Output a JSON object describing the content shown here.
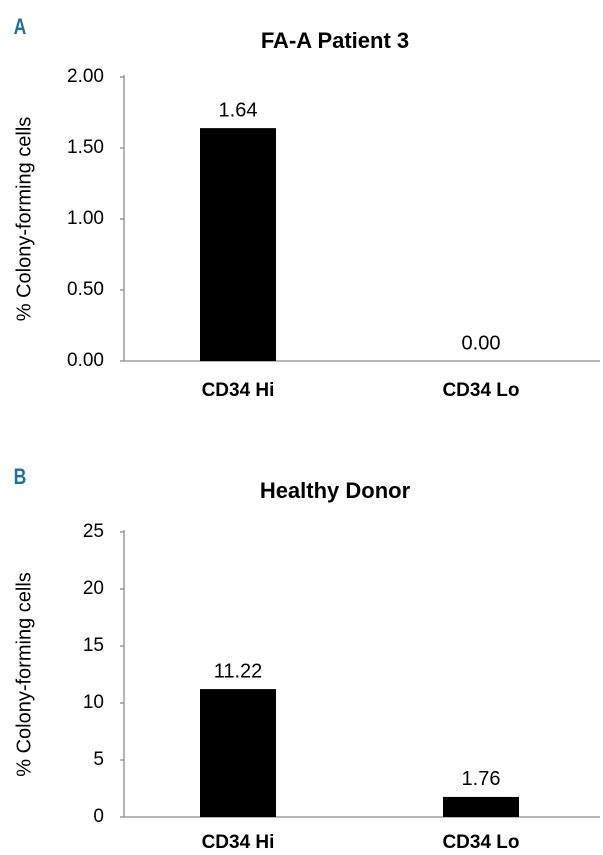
{
  "chart_data": [
    {
      "type": "bar",
      "label": "A",
      "title": "FA-A Patient 3",
      "y_label": "% Colony-forming cells",
      "categories": [
        "CD34 Hi",
        "CD34 Lo"
      ],
      "values": [
        1.64,
        0
      ],
      "value_labels": [
        "1.64",
        "0.00"
      ],
      "color": "#000000",
      "ylim": [
        0,
        2
      ],
      "yticks": [
        {
          "value": 0,
          "label": "0.00"
        },
        {
          "value": 0.5,
          "label": "0.50"
        },
        {
          "value": 1,
          "label": "1.00"
        },
        {
          "value": 1.5,
          "label": "1.50"
        },
        {
          "value": 2,
          "label": "2.00"
        }
      ],
      "grid": false
    },
    {
      "type": "bar",
      "label": "B",
      "title": "Healthy Donor",
      "y_label": "% Colony-forming cells",
      "categories": [
        "CD34 Hi",
        "CD34 Lo"
      ],
      "values": [
        11.22,
        1.76
      ],
      "color": "#000000",
      "ylim": [
        0,
        25
      ],
      "yticks": [
        0,
        5,
        10,
        15,
        20,
        25
      ],
      "grid": false
    }
  ]
}
